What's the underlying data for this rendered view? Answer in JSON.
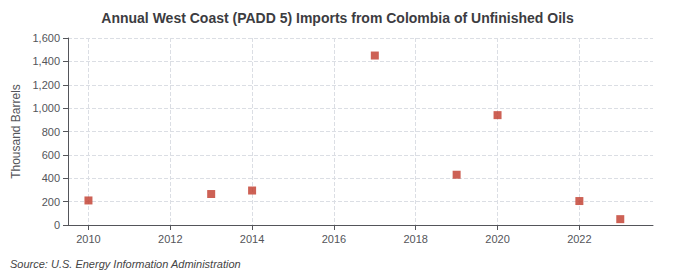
{
  "chart_data": {
    "type": "scatter",
    "title": "Annual West Coast (PADD 5) Imports from Colombia of Unfinished Oils",
    "ylabel": "Thousand Barrels",
    "annotations": [
      "Source: U.S. Energy Information Administration"
    ],
    "x": [
      2010,
      2013,
      2014,
      2017,
      2019,
      2020,
      2022,
      2023
    ],
    "values": [
      210,
      265,
      295,
      1450,
      430,
      940,
      205,
      50
    ],
    "color": "#c0392b",
    "marker": "square",
    "xlim": [
      2009.5,
      2023.8
    ],
    "ylim": [
      0,
      1600
    ],
    "xticks": [
      2010,
      2012,
      2014,
      2016,
      2018,
      2020,
      2022
    ],
    "yticks": [
      0,
      200,
      400,
      600,
      800,
      {
        "value": 1000,
        "label": "1,000"
      },
      {
        "value": 1200,
        "label": "1,200"
      },
      {
        "value": 1400,
        "label": "1,400"
      },
      {
        "value": 1600,
        "label": "1,600"
      }
    ],
    "grid": true
  }
}
